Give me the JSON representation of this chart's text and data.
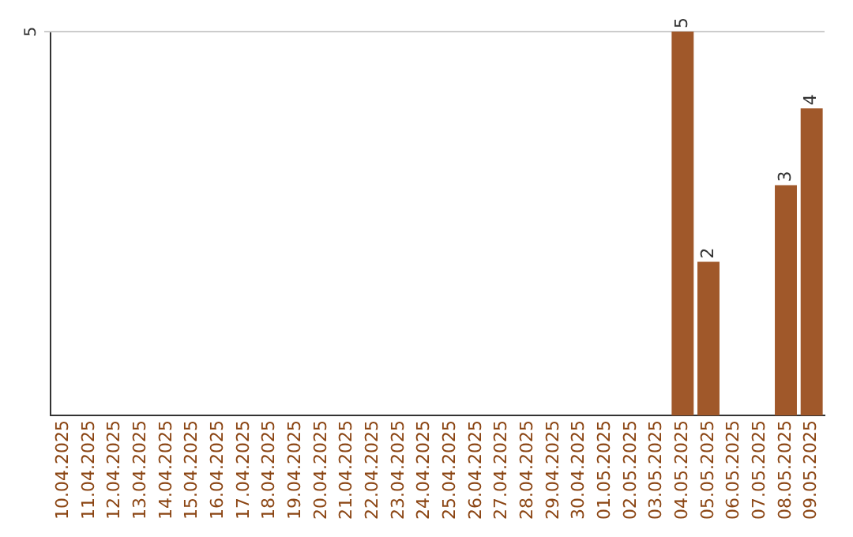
{
  "chart_data": {
    "type": "bar",
    "categories": [
      "10.04.2025",
      "11.04.2025",
      "12.04.2025",
      "13.04.2025",
      "14.04.2025",
      "15.04.2025",
      "16.04.2025",
      "17.04.2025",
      "18.04.2025",
      "19.04.2025",
      "20.04.2025",
      "21.04.2025",
      "22.04.2025",
      "23.04.2025",
      "24.04.2025",
      "25.04.2025",
      "26.04.2025",
      "27.04.2025",
      "28.04.2025",
      "29.04.2025",
      "30.04.2025",
      "01.05.2025",
      "02.05.2025",
      "03.05.2025",
      "04.05.2025",
      "05.05.2025",
      "06.05.2025",
      "07.05.2025",
      "08.05.2025",
      "09.05.2025"
    ],
    "values": [
      null,
      null,
      null,
      null,
      null,
      null,
      null,
      null,
      null,
      null,
      null,
      null,
      null,
      null,
      null,
      null,
      null,
      null,
      null,
      null,
      null,
      null,
      null,
      null,
      5,
      2,
      null,
      null,
      3,
      4
    ],
    "data_labels": true,
    "color": "#a0582a",
    "ylim": [
      0,
      5
    ],
    "ref_lines": [
      {
        "axis": "y",
        "value": 5,
        "label": "5",
        "color": "#cccccc"
      }
    ],
    "legend": false
  }
}
